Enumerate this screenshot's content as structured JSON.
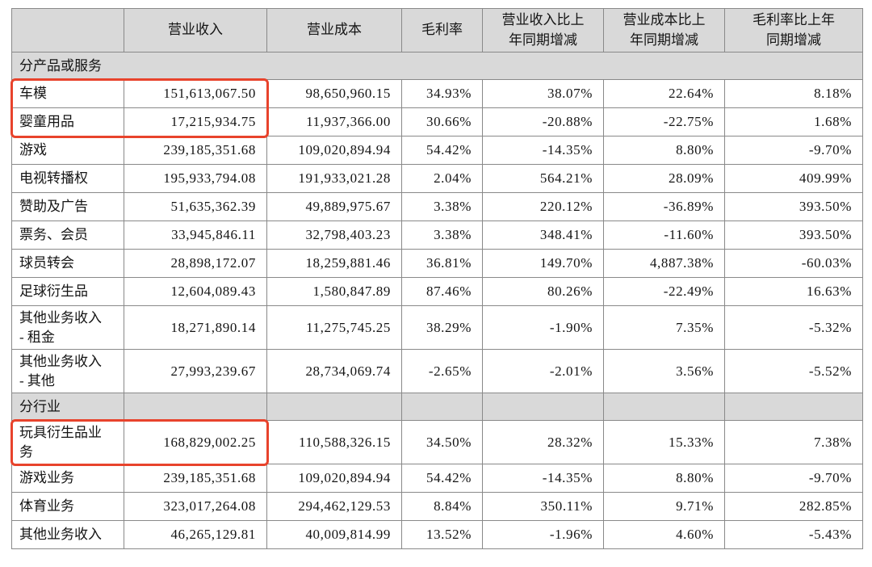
{
  "colors": {
    "annotation_red": "#e8432c",
    "header_background": "#d9d9d9",
    "grid_border": "#898989",
    "text": "#141414"
  },
  "table": {
    "columns": [
      {
        "id": "item",
        "label": ""
      },
      {
        "id": "revenue",
        "label": "营业收入"
      },
      {
        "id": "cost",
        "label": "营业成本"
      },
      {
        "id": "gross_margin",
        "label": "毛利率"
      },
      {
        "id": "revenue_yoy",
        "label": "营业收入比上\n年同期增减"
      },
      {
        "id": "cost_yoy",
        "label": "营业成本比上\n年同期增减"
      },
      {
        "id": "margin_yoy",
        "label": "毛利率比上年\n同期增减"
      }
    ],
    "rows": [
      {
        "type": "section_full",
        "label": "分产品或服务"
      },
      {
        "type": "data",
        "label": "车模",
        "values": [
          "151,613,067.50",
          "98,650,960.15",
          "34.93%",
          "38.07%",
          "22.64%",
          "8.18%"
        ]
      },
      {
        "type": "data",
        "label": "婴童用品",
        "values": [
          "17,215,934.75",
          "11,937,366.00",
          "30.66%",
          "-20.88%",
          "-22.75%",
          "1.68%"
        ]
      },
      {
        "type": "data",
        "label": "游戏",
        "values": [
          "239,185,351.68",
          "109,020,894.94",
          "54.42%",
          "-14.35%",
          "8.80%",
          "-9.70%"
        ]
      },
      {
        "type": "data",
        "label": "电视转播权",
        "values": [
          "195,933,794.08",
          "191,933,021.28",
          "2.04%",
          "564.21%",
          "28.09%",
          "409.99%"
        ]
      },
      {
        "type": "data",
        "label": "赞助及广告",
        "values": [
          "51,635,362.39",
          "49,889,975.67",
          "3.38%",
          "220.12%",
          "-36.89%",
          "393.50%"
        ]
      },
      {
        "type": "data",
        "label": "票务、会员",
        "values": [
          "33,945,846.11",
          "32,798,403.23",
          "3.38%",
          "348.41%",
          "-11.60%",
          "393.50%"
        ]
      },
      {
        "type": "data",
        "label": "球员转会",
        "values": [
          "28,898,172.07",
          "18,259,881.46",
          "36.81%",
          "149.70%",
          "4,887.38%",
          "-60.03%"
        ]
      },
      {
        "type": "data",
        "label": "足球衍生品",
        "values": [
          "12,604,089.43",
          "1,580,847.89",
          "87.46%",
          "80.26%",
          "-22.49%",
          "16.63%"
        ]
      },
      {
        "type": "data",
        "tall": true,
        "label": "其他业务收入\n- 租金",
        "values": [
          "18,271,890.14",
          "11,275,745.25",
          "38.29%",
          "-1.90%",
          "7.35%",
          "-5.32%"
        ]
      },
      {
        "type": "data",
        "tall": true,
        "label": "其他业务收入\n- 其他",
        "values": [
          "27,993,239.67",
          "28,734,069.74",
          "-2.65%",
          "-2.01%",
          "3.56%",
          "-5.52%"
        ]
      },
      {
        "type": "section",
        "label": "分行业"
      },
      {
        "type": "data",
        "tall": true,
        "label": "玩具衍生品业\n务",
        "values": [
          "168,829,002.25",
          "110,588,326.15",
          "34.50%",
          "28.32%",
          "15.33%",
          "7.38%"
        ]
      },
      {
        "type": "data",
        "label": "游戏业务",
        "values": [
          "239,185,351.68",
          "109,020,894.94",
          "54.42%",
          "-14.35%",
          "8.80%",
          "-9.70%"
        ]
      },
      {
        "type": "data",
        "label": "体育业务",
        "values": [
          "323,017,264.08",
          "294,462,129.53",
          "8.84%",
          "350.11%",
          "9.71%",
          "282.85%"
        ]
      },
      {
        "type": "data",
        "label": "其他业务收入",
        "values": [
          "46,265,129.81",
          "40,009,814.99",
          "13.52%",
          "-1.96%",
          "4.60%",
          "-5.43%"
        ]
      }
    ],
    "highlights": [
      {
        "name": "highlight-box-product-rows",
        "row_start": 1,
        "row_end": 2,
        "col_start": 0,
        "col_end": 1
      },
      {
        "name": "highlight-box-industry-row",
        "row_start": 12,
        "row_end": 12,
        "col_start": 0,
        "col_end": 1
      }
    ]
  }
}
